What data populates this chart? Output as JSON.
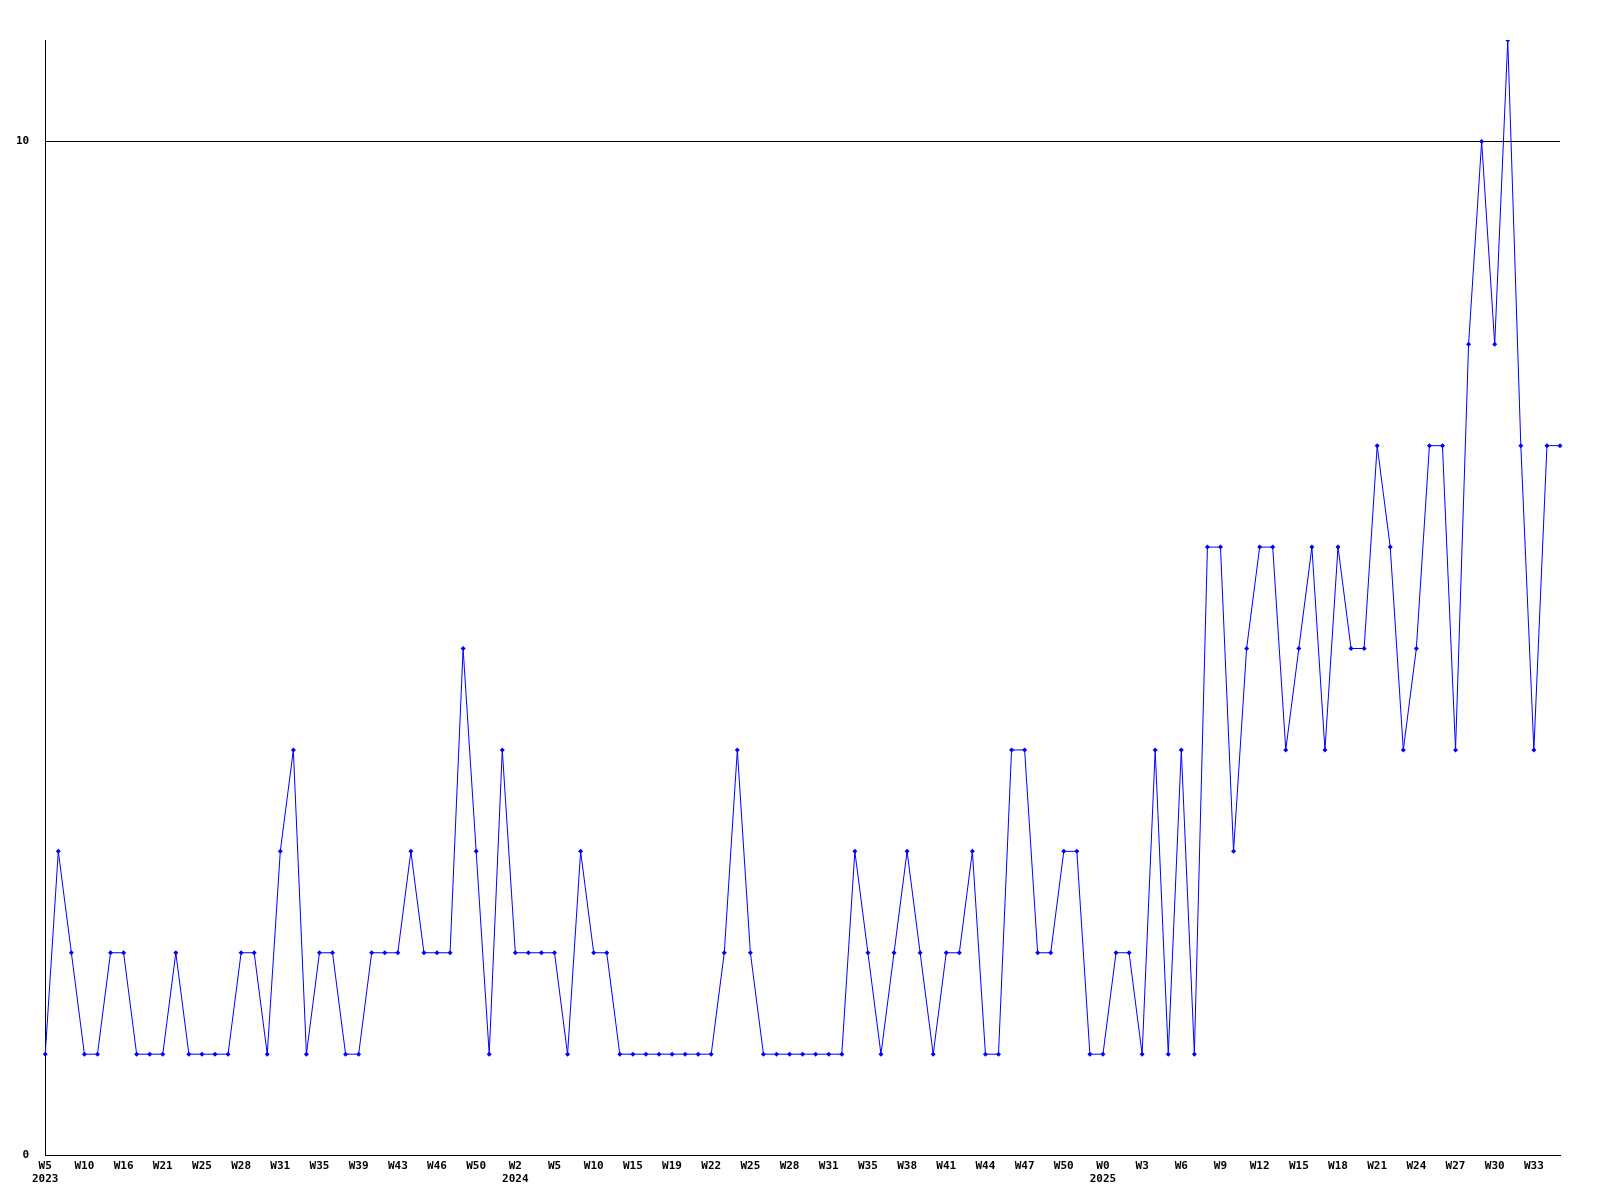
{
  "chart_data": {
    "type": "line",
    "categories": [
      "W5\n2023",
      null,
      null,
      "W10",
      null,
      null,
      "W16",
      null,
      null,
      "W21",
      null,
      null,
      "W25",
      null,
      null,
      "W28",
      null,
      null,
      "W31",
      null,
      null,
      "W35",
      null,
      null,
      "W39",
      null,
      null,
      "W43",
      null,
      null,
      "W46",
      null,
      null,
      "W50",
      null,
      null,
      "W2\n2024",
      null,
      null,
      "W5",
      null,
      null,
      "W10",
      null,
      null,
      "W15",
      null,
      null,
      "W19",
      null,
      null,
      "W22",
      null,
      null,
      "W25",
      null,
      null,
      "W28",
      null,
      null,
      "W31",
      null,
      null,
      "W35",
      null,
      null,
      "W38",
      null,
      null,
      "W41",
      null,
      null,
      "W44",
      null,
      null,
      "W47",
      null,
      null,
      "W50",
      null,
      null,
      "W0\n2025",
      null,
      null,
      "W3",
      null,
      null,
      "W6",
      null,
      null,
      "W9",
      null,
      null,
      "W12",
      null,
      null,
      "W15",
      null,
      null,
      "W18",
      null,
      null,
      "W21",
      null,
      null,
      "W24",
      null,
      null,
      "W27",
      null,
      null,
      "W30",
      null,
      null,
      "W33",
      null,
      null
    ],
    "series": [
      {
        "color": "#0000ff",
        "values": [
          1,
          3,
          2,
          1,
          1,
          2,
          2,
          1,
          1,
          1,
          2,
          1,
          1,
          1,
          1,
          2,
          2,
          1,
          3,
          4,
          1,
          2,
          2,
          1,
          1,
          2,
          2,
          2,
          3,
          2,
          2,
          2,
          5,
          3,
          1,
          4,
          2,
          2,
          2,
          2,
          1,
          3,
          2,
          2,
          1,
          1,
          1,
          1,
          1,
          1,
          1,
          1,
          2,
          4,
          2,
          1,
          1,
          1,
          1,
          1,
          1,
          1,
          3,
          2,
          1,
          2,
          3,
          2,
          1,
          2,
          2,
          3,
          1,
          1,
          4,
          4,
          2,
          2,
          3,
          3,
          1,
          1,
          2,
          2,
          1,
          4,
          1,
          4,
          1,
          6,
          6,
          3,
          5,
          6,
          6,
          4,
          5,
          6,
          4,
          6,
          5,
          5,
          7,
          6,
          4,
          5,
          7,
          7,
          4,
          8,
          10,
          8,
          11,
          7,
          4,
          7,
          7
        ]
      }
    ],
    "ylim": [
      0,
      11
    ],
    "yticks": [
      0,
      10
    ],
    "grid": "y",
    "legend": false,
    "marker": "diamond",
    "line_style": "solid"
  }
}
